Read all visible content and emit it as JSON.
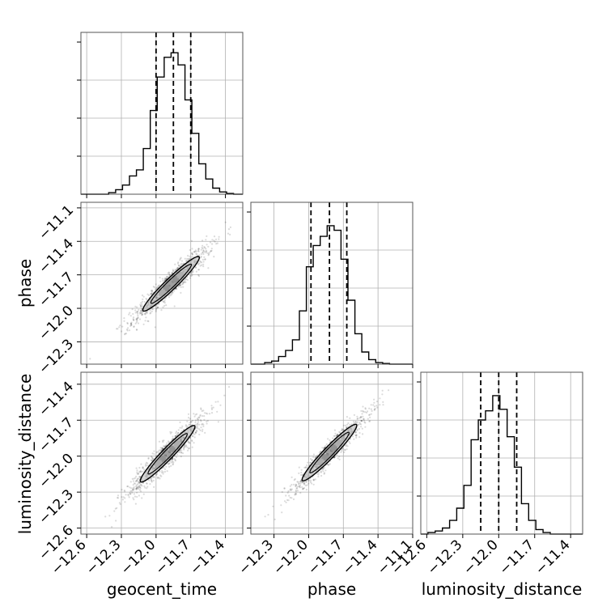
{
  "chart_data": {
    "type": "corner",
    "parameters": [
      "geocent_time",
      "phase",
      "luminosity_distance"
    ],
    "grid": true,
    "panels": [
      {
        "kind": "histogram",
        "param": "geocent_time",
        "xlim": [
          -12.65,
          -11.25
        ],
        "ylim": [
          0,
          1.0
        ],
        "bin_edges": [
          -12.65,
          -12.59,
          -12.53,
          -12.47,
          -12.41,
          -12.35,
          -12.29,
          -12.23,
          -12.17,
          -12.11,
          -12.05,
          -11.99,
          -11.93,
          -11.87,
          -11.81,
          -11.75,
          -11.69,
          -11.63,
          -11.57,
          -11.51,
          -11.45,
          -11.39,
          -11.33,
          -11.25
        ],
        "counts": [
          0,
          0,
          0,
          0,
          0.01,
          0.03,
          0.06,
          0.12,
          0.16,
          0.3,
          0.55,
          0.77,
          0.9,
          0.93,
          0.85,
          0.62,
          0.4,
          0.2,
          0.1,
          0.04,
          0.015,
          0.005,
          0
        ],
        "quantiles": [
          -12.0,
          -11.85,
          -11.7
        ]
      },
      {
        "kind": "histogram",
        "param": "phase",
        "xlim": [
          -12.5,
          -11.1
        ],
        "ylim": [
          0,
          1.0
        ],
        "bin_edges": [
          -12.5,
          -12.44,
          -12.38,
          -12.32,
          -12.26,
          -12.2,
          -12.14,
          -12.08,
          -12.02,
          -11.96,
          -11.9,
          -11.84,
          -11.78,
          -11.72,
          -11.66,
          -11.6,
          -11.54,
          -11.48,
          -11.42,
          -11.36,
          -11.3,
          -11.24,
          -11.1
        ],
        "counts": [
          0,
          0,
          0.01,
          0.02,
          0.05,
          0.09,
          0.16,
          0.35,
          0.64,
          0.78,
          0.84,
          0.91,
          0.88,
          0.69,
          0.42,
          0.2,
          0.08,
          0.03,
          0.01,
          0.004,
          0,
          0
        ],
        "quantiles": [
          -11.98,
          -11.82,
          -11.67
        ]
      },
      {
        "kind": "histogram",
        "param": "luminosity_distance",
        "xlim": [
          -12.65,
          -11.3
        ],
        "ylim": [
          0,
          1.0
        ],
        "bin_edges": [
          -12.65,
          -12.59,
          -12.53,
          -12.47,
          -12.41,
          -12.35,
          -12.29,
          -12.23,
          -12.17,
          -12.11,
          -12.05,
          -11.99,
          -11.93,
          -11.87,
          -11.81,
          -11.75,
          -11.69,
          -11.63,
          -11.57,
          -11.51,
          -11.45,
          -11.39,
          -11.3
        ],
        "counts": [
          0,
          0.01,
          0.02,
          0.04,
          0.09,
          0.17,
          0.32,
          0.62,
          0.75,
          0.81,
          0.91,
          0.82,
          0.64,
          0.44,
          0.2,
          0.09,
          0.03,
          0.01,
          0,
          0,
          0,
          0
        ],
        "quantiles": [
          -12.15,
          -12.0,
          -11.85
        ]
      },
      {
        "kind": "2d",
        "x_param": "geocent_time",
        "y_param": "phase",
        "xlim": [
          -12.65,
          -11.25
        ],
        "ylim": [
          -12.5,
          -11.05
        ],
        "center": [
          -11.87,
          -11.78
        ],
        "slope": 1.0,
        "spread": 0.17,
        "width": 0.03
      },
      {
        "kind": "2d",
        "x_param": "geocent_time",
        "y_param": "luminosity_distance",
        "xlim": [
          -12.65,
          -11.25
        ],
        "ylim": [
          -12.65,
          -11.3
        ],
        "center": [
          -11.9,
          -11.98
        ],
        "slope": 1.0,
        "spread": 0.17,
        "width": 0.03
      },
      {
        "kind": "2d",
        "x_param": "phase",
        "y_param": "luminosity_distance",
        "xlim": [
          -12.5,
          -11.1
        ],
        "ylim": [
          -12.65,
          -11.3
        ],
        "center": [
          -11.82,
          -11.97
        ],
        "slope": 1.0,
        "spread": 0.17,
        "width": 0.025
      }
    ],
    "ticks": {
      "geocent_time": [
        "−12.6",
        "−12.3",
        "−12.0",
        "−11.7",
        "−11.4"
      ],
      "geocent_time_values": [
        -12.6,
        -12.3,
        -12.0,
        -11.7,
        -11.4
      ],
      "phase_y": [
        "−12.3",
        "−12.0",
        "−11.7",
        "−11.4",
        "−11.1"
      ],
      "phase_y_values": [
        -12.3,
        -12.0,
        -11.7,
        -11.4,
        -11.1
      ],
      "phase_x": [
        "−12.3",
        "−12.0",
        "−11.7",
        "−11.4",
        "−11.1"
      ],
      "phase_x_values": [
        -12.3,
        -12.0,
        -11.7,
        -11.4,
        -11.1
      ],
      "luminosity_distance": [
        "−12.6",
        "−12.3",
        "−12.0",
        "−11.7",
        "−11.4"
      ],
      "luminosity_distance_values": [
        -12.6,
        -12.3,
        -12.0,
        -11.7,
        -11.4
      ]
    },
    "xlabels": [
      "geocent_time",
      "phase",
      "luminosity_distance"
    ],
    "ylabels": [
      "phase",
      "luminosity_distance"
    ]
  }
}
